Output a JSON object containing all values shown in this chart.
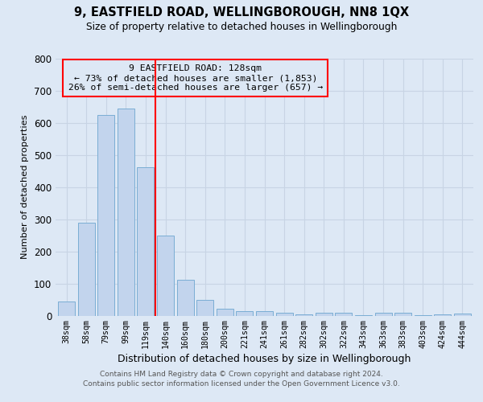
{
  "title": "9, EASTFIELD ROAD, WELLINGBOROUGH, NN8 1QX",
  "subtitle": "Size of property relative to detached houses in Wellingborough",
  "xlabel": "Distribution of detached houses by size in Wellingborough",
  "ylabel": "Number of detached properties",
  "bar_labels": [
    "38sqm",
    "58sqm",
    "79sqm",
    "99sqm",
    "119sqm",
    "140sqm",
    "160sqm",
    "180sqm",
    "200sqm",
    "221sqm",
    "241sqm",
    "261sqm",
    "282sqm",
    "302sqm",
    "322sqm",
    "343sqm",
    "363sqm",
    "383sqm",
    "403sqm",
    "424sqm",
    "444sqm"
  ],
  "bar_values": [
    45,
    290,
    625,
    645,
    462,
    248,
    112,
    48,
    22,
    15,
    15,
    10,
    3,
    8,
    8,
    2,
    8,
    8,
    2,
    3,
    7
  ],
  "bar_color": "#c2d4ed",
  "bar_edgecolor": "#7aadd4",
  "annotation_text": "9 EASTFIELD ROAD: 128sqm\n← 73% of detached houses are smaller (1,853)\n26% of semi-detached houses are larger (657) →",
  "vline_pos": 4.5,
  "grid_color": "#c8d4e4",
  "bg_color": "#dde8f5",
  "footer_line1": "Contains HM Land Registry data © Crown copyright and database right 2024.",
  "footer_line2": "Contains public sector information licensed under the Open Government Licence v3.0.",
  "ylim": [
    0,
    800
  ],
  "yticks": [
    0,
    100,
    200,
    300,
    400,
    500,
    600,
    700,
    800
  ]
}
